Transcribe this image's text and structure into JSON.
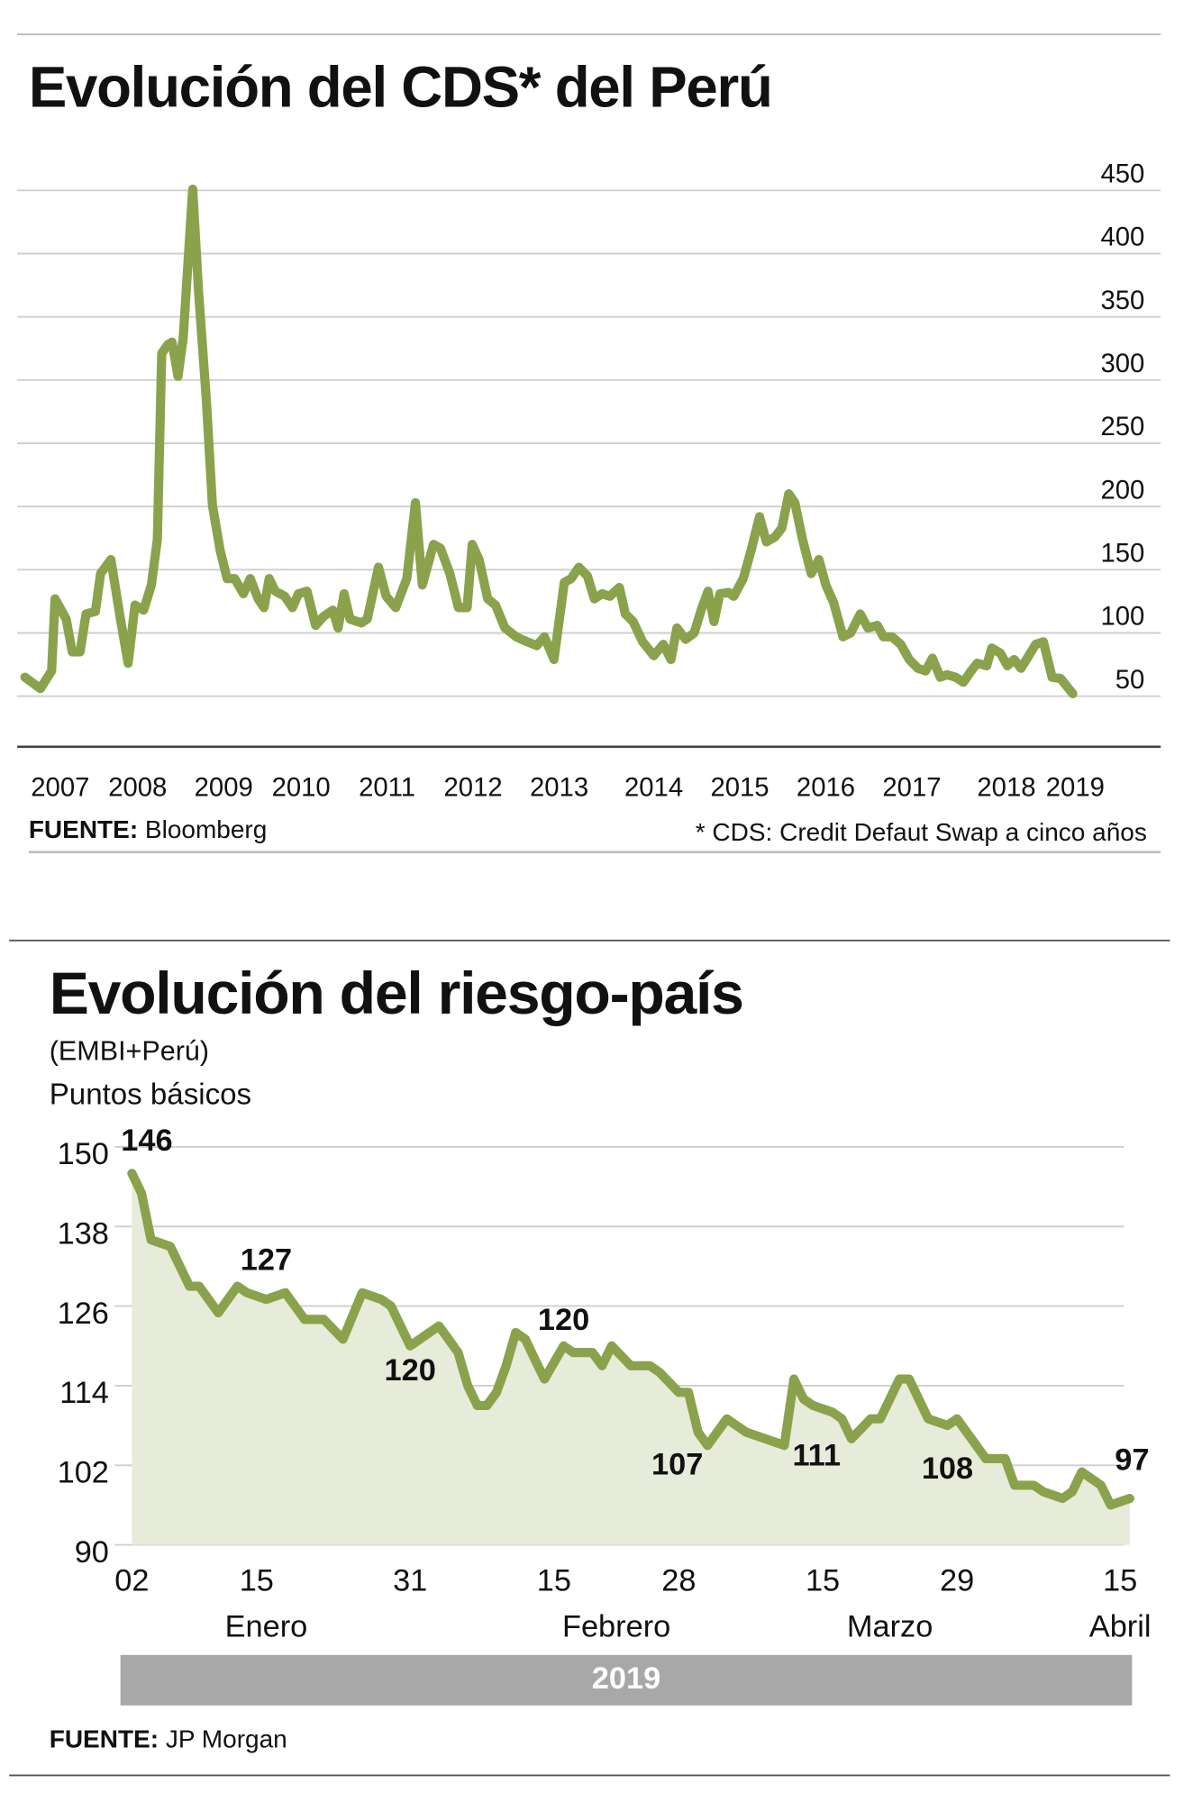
{
  "chart_data": [
    {
      "type": "line",
      "title": "Evolución del CDS* del Perú",
      "x": [
        2006.99,
        2007.17,
        2007.3,
        2007.34,
        2007.47,
        2007.54,
        2007.63,
        2007.7,
        2007.81,
        2007.87,
        2007.99,
        2008.1,
        2008.19,
        2008.27,
        2008.37,
        2008.46,
        2008.53,
        2008.58,
        2008.65,
        2008.7,
        2008.77,
        2008.83,
        2008.94,
        2009.01,
        2009.1,
        2009.17,
        2009.26,
        2009.34,
        2009.43,
        2009.53,
        2009.61,
        2009.7,
        2009.77,
        2009.83,
        2009.9,
        2010.01,
        2010.1,
        2010.17,
        2010.27,
        2010.37,
        2010.46,
        2010.57,
        2010.63,
        2010.7,
        2010.77,
        2010.9,
        2010.97,
        2011.1,
        2011.19,
        2011.3,
        2011.43,
        2011.53,
        2011.61,
        2011.74,
        2011.82,
        2011.93,
        2012.03,
        2012.13,
        2012.19,
        2012.27,
        2012.37,
        2012.46,
        2012.57,
        2012.7,
        2012.83,
        2012.94,
        2013.03,
        2013.14,
        2013.26,
        2013.34,
        2013.43,
        2013.53,
        2013.61,
        2013.7,
        2013.79,
        2013.9,
        2013.97,
        2014.06,
        2014.17,
        2014.3,
        2014.41,
        2014.5,
        2014.57,
        2014.67,
        2014.77,
        2014.86,
        2014.93,
        2015.0,
        2015.07,
        2015.17,
        2015.23,
        2015.34,
        2015.43,
        2015.53,
        2015.61,
        2015.71,
        2015.79,
        2015.87,
        2015.94,
        2016.03,
        2016.13,
        2016.22,
        2016.3,
        2016.39,
        2016.5,
        2016.59,
        2016.7,
        2016.79,
        2016.9,
        2016.97,
        2017.07,
        2017.17,
        2017.27,
        2017.37,
        2017.46,
        2017.54,
        2017.63,
        2017.71,
        2017.81,
        2017.9,
        2017.99,
        2018.06,
        2018.17,
        2018.23,
        2018.33,
        2018.41,
        2018.49,
        2018.57,
        2018.66,
        2018.74,
        2018.83,
        2018.93,
        2019.03,
        2019.17
      ],
      "values": [
        65,
        56,
        70,
        127,
        111,
        85,
        85,
        115,
        117,
        147,
        158,
        111,
        76,
        122,
        118,
        138,
        174,
        321,
        328,
        330,
        303,
        333,
        451,
        369,
        283,
        201,
        165,
        143,
        143,
        131,
        143,
        127,
        120,
        143,
        133,
        129,
        120,
        131,
        133,
        106,
        113,
        118,
        104,
        131,
        111,
        108,
        111,
        152,
        129,
        120,
        143,
        203,
        138,
        170,
        167,
        147,
        120,
        120,
        170,
        158,
        127,
        122,
        104,
        97,
        93,
        90,
        97,
        79,
        140,
        143,
        152,
        145,
        127,
        131,
        129,
        136,
        115,
        109,
        93,
        82,
        91,
        79,
        104,
        95,
        100,
        120,
        133,
        109,
        131,
        132,
        129,
        143,
        165,
        192,
        172,
        176,
        183,
        210,
        203,
        174,
        147,
        158,
        138,
        124,
        97,
        100,
        115,
        104,
        106,
        97,
        97,
        91,
        79,
        72,
        70,
        80,
        65,
        67,
        65,
        61,
        70,
        76,
        74,
        88,
        84,
        74,
        79,
        72,
        82,
        91,
        93,
        65,
        64,
        52
      ],
      "color": "#8aa24b",
      "xlim": [
        2006.9,
        2020.2
      ],
      "xticks": [
        {
          "value": 2007.4,
          "label": "2007"
        },
        {
          "value": 2008.3,
          "label": "2008"
        },
        {
          "value": 2009.3,
          "label": "2009"
        },
        {
          "value": 2010.2,
          "label": "2010"
        },
        {
          "value": 2011.2,
          "label": "2011"
        },
        {
          "value": 2012.2,
          "label": "2012"
        },
        {
          "value": 2013.2,
          "label": "2013"
        },
        {
          "value": 2014.3,
          "label": "2014"
        },
        {
          "value": 2015.3,
          "label": "2015"
        },
        {
          "value": 2016.3,
          "label": "2016"
        },
        {
          "value": 2017.3,
          "label": "2017"
        },
        {
          "value": 2018.4,
          "label": "2018"
        },
        {
          "value": 2019.2,
          "label": "2019"
        }
      ],
      "ylim": [
        10,
        460
      ],
      "yticks": [
        50,
        100,
        150,
        200,
        250,
        300,
        350,
        400,
        450
      ],
      "grid": true,
      "source_label": "FUENTE:",
      "source": "Bloomberg",
      "footnote": "* CDS: Credit Defaut Swap a cinco años"
    },
    {
      "type": "area",
      "title": "Evolución del riesgo-país",
      "subtitle": "(EMBI+Perú)",
      "y_label": "Puntos básicos",
      "x": [
        "2019-01-02",
        "2019-01-03",
        "2019-01-04",
        "2019-01-06",
        "2019-01-08",
        "2019-01-09",
        "2019-01-11",
        "2019-01-13",
        "2019-01-14",
        "2019-01-16",
        "2019-01-18",
        "2019-01-20",
        "2019-01-22",
        "2019-01-24",
        "2019-01-26",
        "2019-01-28",
        "2019-01-29",
        "2019-01-31",
        "2019-02-01",
        "2019-02-03",
        "2019-02-04",
        "2019-02-05",
        "2019-02-06",
        "2019-02-07",
        "2019-02-08",
        "2019-02-09",
        "2019-02-10",
        "2019-02-11",
        "2019-02-12",
        "2019-02-13",
        "2019-02-14",
        "2019-02-16",
        "2019-02-17",
        "2019-02-19",
        "2019-02-20",
        "2019-02-21",
        "2019-02-23",
        "2019-02-25",
        "2019-02-26",
        "2019-02-28",
        "2019-03-01",
        "2019-03-02",
        "2019-03-03",
        "2019-03-05",
        "2019-03-06",
        "2019-03-07",
        "2019-03-09",
        "2019-03-11",
        "2019-03-12",
        "2019-03-13",
        "2019-03-14",
        "2019-03-16",
        "2019-03-17",
        "2019-03-18",
        "2019-03-20",
        "2019-03-21",
        "2019-03-23",
        "2019-03-24",
        "2019-03-26",
        "2019-03-28",
        "2019-03-29",
        "2019-03-30",
        "2019-04-01",
        "2019-04-03",
        "2019-04-04",
        "2019-04-06",
        "2019-04-07",
        "2019-04-09",
        "2019-04-10",
        "2019-04-11",
        "2019-04-13",
        "2019-04-14",
        "2019-04-16"
      ],
      "values": [
        146,
        143,
        136,
        135,
        129,
        129,
        125,
        129,
        128,
        127,
        128,
        124,
        124,
        121,
        128,
        127,
        126,
        120,
        121,
        123,
        121,
        119,
        114,
        111,
        111,
        113,
        117,
        122,
        121,
        118,
        115,
        120,
        119,
        119,
        117,
        120,
        117,
        117,
        116,
        113,
        113,
        107,
        105,
        109,
        108,
        107,
        106,
        105,
        115,
        112,
        111,
        110,
        109,
        106,
        109,
        109,
        115,
        115,
        109,
        108,
        109,
        107,
        103,
        103,
        99,
        99,
        98,
        97,
        98,
        101,
        99,
        96,
        97
      ],
      "value_labels": [
        "146",
        null,
        null,
        null,
        null,
        null,
        null,
        null,
        null,
        "127",
        null,
        null,
        null,
        null,
        null,
        null,
        null,
        "120",
        null,
        null,
        null,
        null,
        null,
        null,
        null,
        null,
        null,
        null,
        null,
        null,
        null,
        "120",
        null,
        null,
        null,
        null,
        null,
        null,
        null,
        null,
        null,
        "107",
        null,
        null,
        null,
        null,
        null,
        null,
        null,
        null,
        "111",
        null,
        null,
        null,
        null,
        null,
        null,
        null,
        null,
        "108",
        null,
        null,
        null,
        null,
        null,
        null,
        null,
        null,
        null,
        null,
        null,
        null,
        "97"
      ],
      "color": "#8aa24b",
      "fill_color": "#e7ebda",
      "xlim": [
        "2019-01-02",
        "2019-04-16"
      ],
      "xticks": [
        {
          "value": "2019-01-02",
          "label": "02"
        },
        {
          "value": "2019-01-15",
          "label": "15"
        },
        {
          "value": "2019-01-31",
          "label": "31"
        },
        {
          "value": "2019-02-15",
          "label": "15"
        },
        {
          "value": "2019-02-28",
          "label": "28"
        },
        {
          "value": "2019-03-15",
          "label": "15"
        },
        {
          "value": "2019-03-29",
          "label": "29"
        },
        {
          "value": "2019-04-15",
          "label": "15"
        }
      ],
      "month_labels": [
        "Enero",
        "Febrero",
        "Marzo",
        "Abril"
      ],
      "year": 2019,
      "ylim": [
        90,
        150
      ],
      "yticks": [
        90,
        102,
        114,
        126,
        138,
        150
      ],
      "grid": true,
      "source_label": "FUENTE:",
      "source": "JP Morgan"
    }
  ]
}
